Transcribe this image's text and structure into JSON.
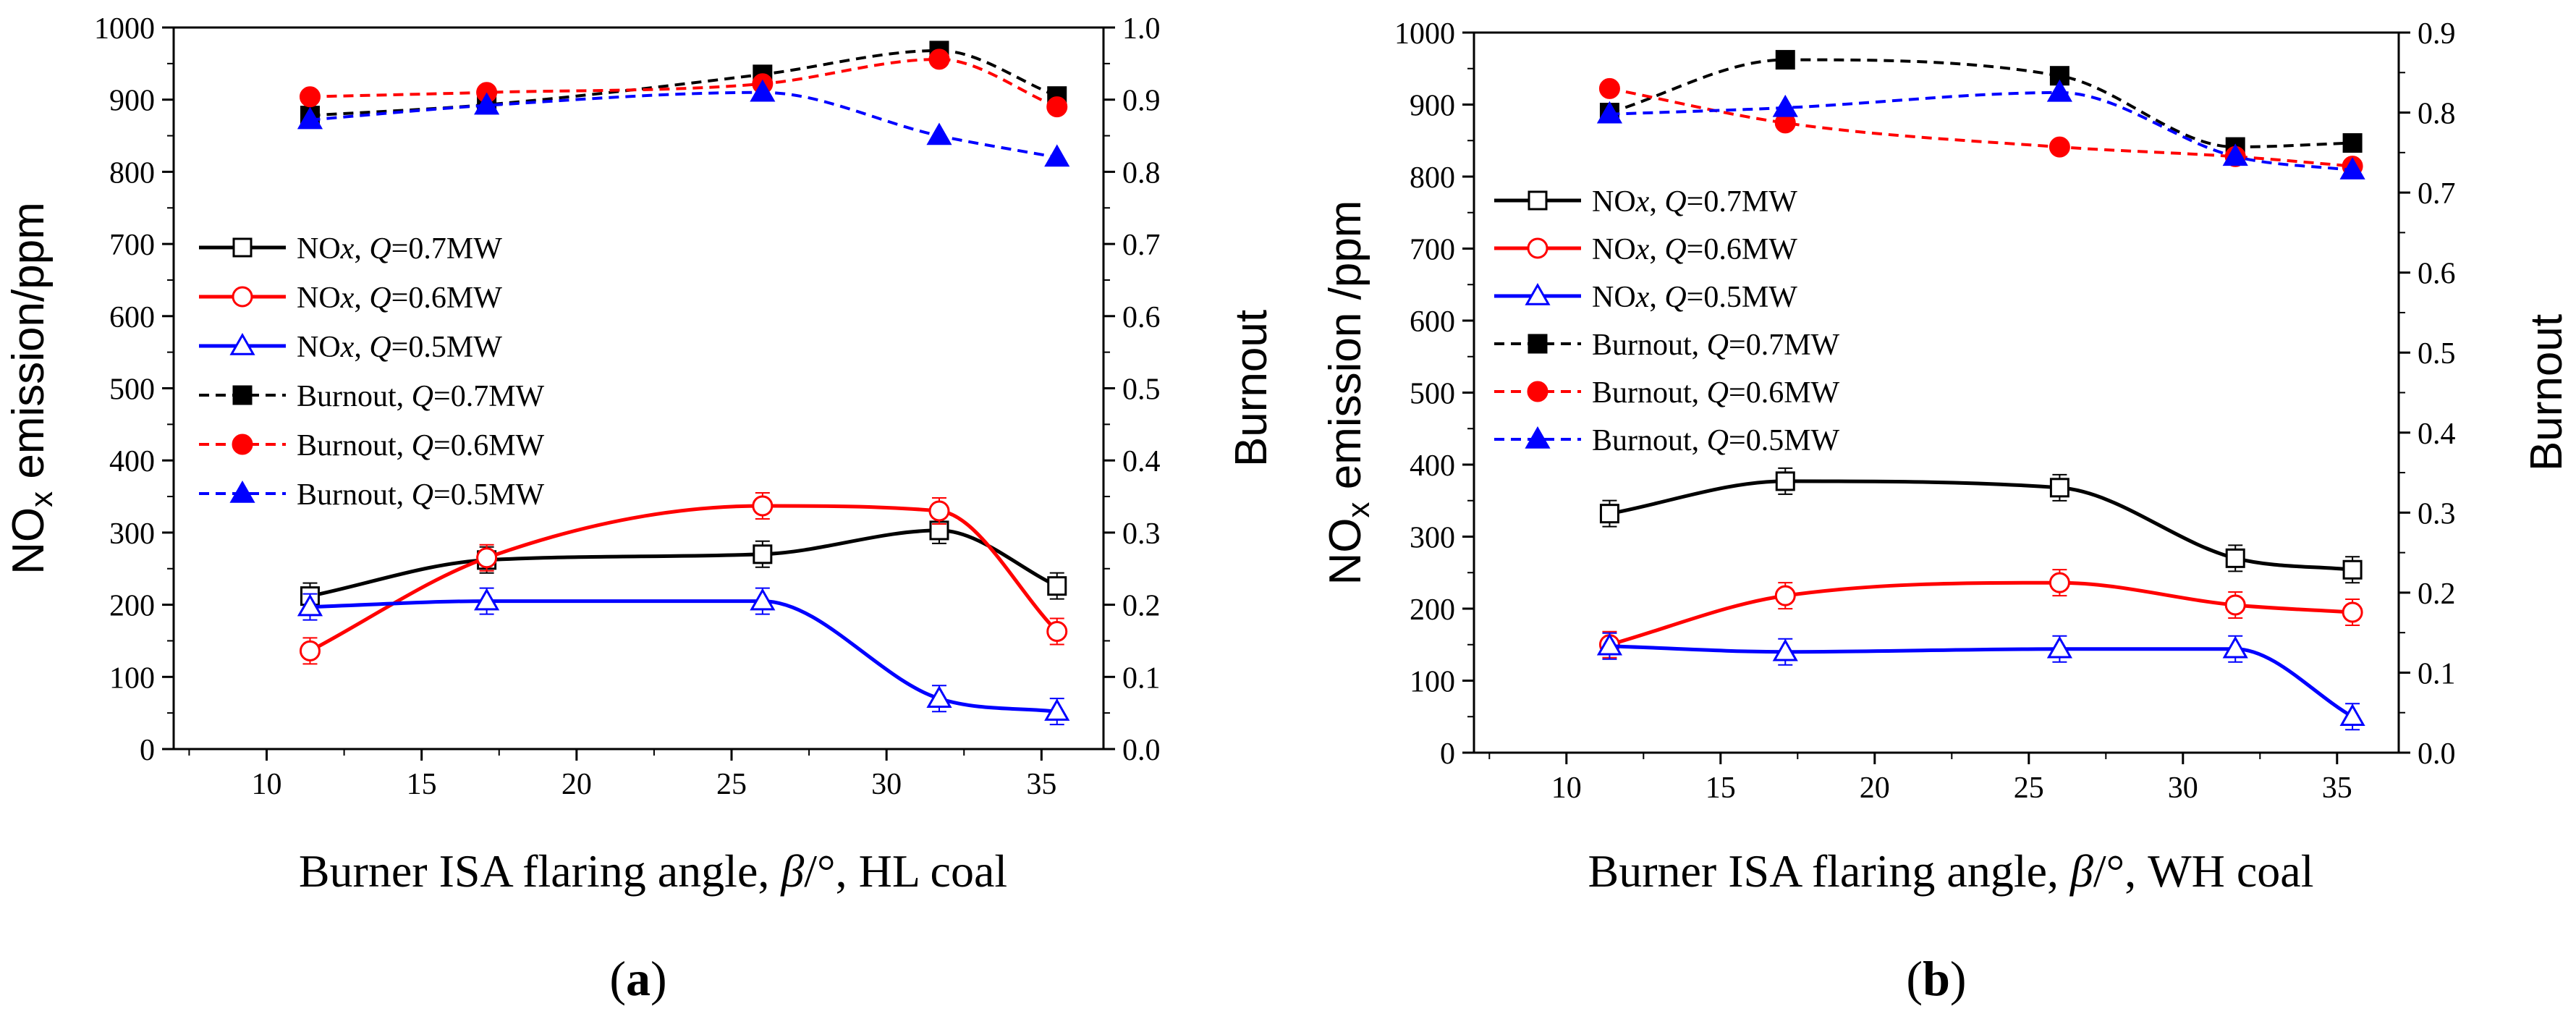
{
  "chart_data": [
    {
      "type": "line",
      "panel_label": "a",
      "xlabel": {
        "prefix": "Burner ISA flaring angle, ",
        "symbol": "β",
        "unit": "/°",
        "suffix": ", HL coal"
      },
      "ylabel_left": {
        "base": "NO",
        "sub": "x",
        "rest": " emission/ppm"
      },
      "ylabel_right": "Burnout",
      "xlim": [
        7,
        37
      ],
      "xticks": [
        10,
        15,
        20,
        25,
        30,
        35
      ],
      "ylim_left": [
        0,
        1000
      ],
      "yticks_left": [
        0,
        100,
        200,
        300,
        400,
        500,
        600,
        700,
        800,
        900,
        1000
      ],
      "ylim_right": [
        0,
        1.0
      ],
      "yticks_right": [
        "0.0",
        "0.1",
        "0.2",
        "0.3",
        "0.4",
        "0.5",
        "0.6",
        "0.7",
        "0.8",
        "0.9",
        "1.0"
      ],
      "x": [
        11.4,
        17.1,
        26.0,
        31.7,
        35.5
      ],
      "series": [
        {
          "name": "NOx, Q=0.7MW",
          "legend": {
            "pre": "NO",
            "it": "x",
            "mid": ", ",
            "q": "Q",
            "post": "=0.7MW"
          },
          "axis": "left",
          "color": "#000000",
          "marker": "square-open",
          "dash": false,
          "values": [
            212,
            262,
            270,
            303,
            226
          ]
        },
        {
          "name": "NOx, Q=0.6MW",
          "legend": {
            "pre": "NO",
            "it": "x",
            "mid": ", ",
            "q": "Q",
            "post": "=0.6MW"
          },
          "axis": "left",
          "color": "#ff0000",
          "marker": "circle-open",
          "dash": false,
          "values": [
            136,
            265,
            337,
            330,
            163
          ]
        },
        {
          "name": "NOx, Q=0.5MW",
          "legend": {
            "pre": "NO",
            "it": "x",
            "mid": ", ",
            "q": "Q",
            "post": "=0.5MW"
          },
          "axis": "left",
          "color": "#0000ff",
          "marker": "triangle-open",
          "dash": false,
          "values": [
            197,
            205,
            205,
            70,
            52
          ]
        },
        {
          "name": "Burnout, Q=0.7MW",
          "legend": {
            "pre": "Burnout",
            "it": "",
            "mid": ", ",
            "q": "Q",
            "post": "=0.7MW"
          },
          "axis": "right",
          "color": "#000000",
          "marker": "square-filled",
          "dash": true,
          "values": [
            0.878,
            0.893,
            0.935,
            0.968,
            0.905
          ]
        },
        {
          "name": "Burnout, Q=0.6MW",
          "legend": {
            "pre": "Burnout",
            "it": "",
            "mid": ", ",
            "q": "Q",
            "post": "=0.6MW"
          },
          "axis": "right",
          "color": "#ff0000",
          "marker": "circle-filled",
          "dash": true,
          "values": [
            0.904,
            0.91,
            0.922,
            0.956,
            0.89
          ]
        },
        {
          "name": "Burnout, Q=0.5MW",
          "legend": {
            "pre": "Burnout",
            "it": "",
            "mid": ", ",
            "q": "Q",
            "post": "=0.5MW"
          },
          "axis": "right",
          "color": "#0000ff",
          "marker": "triangle-filled",
          "dash": true,
          "values": [
            0.872,
            0.892,
            0.91,
            0.85,
            0.82
          ]
        }
      ]
    },
    {
      "type": "line",
      "panel_label": "b",
      "xlabel": {
        "prefix": "Burner ISA flaring angle, ",
        "symbol": "β",
        "unit": "/°",
        "suffix": ", WH coal"
      },
      "ylabel_left": {
        "base": "NO",
        "sub": "x",
        "rest": " emission /ppm"
      },
      "ylabel_right": "Burnout",
      "xlim": [
        7,
        37
      ],
      "xticks": [
        10,
        15,
        20,
        25,
        30,
        35
      ],
      "ylim_left": [
        0,
        1000
      ],
      "yticks_left": [
        0,
        100,
        200,
        300,
        400,
        500,
        600,
        700,
        800,
        900,
        1000
      ],
      "ylim_right": [
        0,
        0.9
      ],
      "yticks_right": [
        "0.0",
        "0.1",
        "0.2",
        "0.3",
        "0.4",
        "0.5",
        "0.6",
        "0.7",
        "0.8",
        "0.9"
      ],
      "x": [
        11.4,
        17.1,
        26.0,
        31.7,
        35.5
      ],
      "series": [
        {
          "name": "NOx, Q=0.7MW",
          "legend": {
            "pre": "NO",
            "it": "x",
            "mid": ", ",
            "q": "Q",
            "post": "=0.7MW"
          },
          "axis": "left",
          "color": "#000000",
          "marker": "square-open",
          "dash": false,
          "values": [
            332,
            377,
            368,
            270,
            254
          ]
        },
        {
          "name": "NOx, Q=0.6MW",
          "legend": {
            "pre": "NO",
            "it": "x",
            "mid": ", ",
            "q": "Q",
            "post": "=0.6MW"
          },
          "axis": "left",
          "color": "#ff0000",
          "marker": "circle-open",
          "dash": false,
          "values": [
            150,
            218,
            236,
            205,
            195
          ]
        },
        {
          "name": "NOx, Q=0.5MW",
          "legend": {
            "pre": "NO",
            "it": "x",
            "mid": ", ",
            "q": "Q",
            "post": "=0.5MW"
          },
          "axis": "left",
          "color": "#0000ff",
          "marker": "triangle-open",
          "dash": false,
          "values": [
            148,
            140,
            144,
            144,
            50
          ]
        },
        {
          "name": "Burnout, Q=0.7MW",
          "legend": {
            "pre": "Burnout",
            "it": "",
            "mid": ", ",
            "q": "Q",
            "post": "=0.7MW"
          },
          "axis": "right",
          "color": "#000000",
          "marker": "square-filled",
          "dash": true,
          "values": [
            0.8,
            0.866,
            0.846,
            0.757,
            0.762
          ]
        },
        {
          "name": "Burnout, Q=0.6MW",
          "legend": {
            "pre": "Burnout",
            "it": "",
            "mid": ", ",
            "q": "Q",
            "post": "=0.6MW"
          },
          "axis": "right",
          "color": "#ff0000",
          "marker": "circle-filled",
          "dash": true,
          "values": [
            0.83,
            0.787,
            0.757,
            0.745,
            0.733
          ]
        },
        {
          "name": "Burnout, Q=0.5MW",
          "legend": {
            "pre": "Burnout",
            "it": "",
            "mid": ", ",
            "q": "Q",
            "post": "=0.5MW"
          },
          "axis": "right",
          "color": "#0000ff",
          "marker": "triangle-filled",
          "dash": true,
          "values": [
            0.798,
            0.806,
            0.825,
            0.745,
            0.728
          ]
        }
      ]
    }
  ]
}
